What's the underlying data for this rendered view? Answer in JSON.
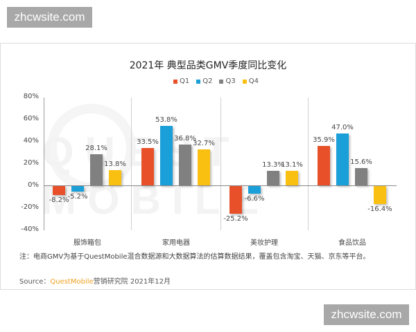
{
  "watermarks": {
    "top": "zhcwsite.com",
    "bottom": "zhcwsite.com"
  },
  "colors": {
    "Q1": "#e8502a",
    "Q2": "#1a9fd8",
    "Q3": "#808080",
    "Q4": "#f9c012",
    "brand": "#f0a020"
  },
  "background_watermark": "QUEST MOBILE",
  "chart_data": {
    "type": "bar",
    "title": "2021年 典型品类GMV季度同比变化",
    "xlabel": "",
    "ylabel": "",
    "ylim": [
      -40,
      80
    ],
    "yticks": [
      "80%",
      "60%",
      "40%",
      "20%",
      "0%",
      "-20%",
      "-40%"
    ],
    "categories": [
      "服饰箱包",
      "家用电器",
      "美妆护理",
      "食品饮品"
    ],
    "legend": [
      "Q1",
      "Q2",
      "Q3",
      "Q4"
    ],
    "legend_position": "top",
    "series": [
      {
        "name": "Q1",
        "values": [
          -8.2,
          33.5,
          -25.2,
          35.9
        ],
        "labels": [
          "-8.2%",
          "33.5%",
          "-25.2%",
          "35.9%"
        ]
      },
      {
        "name": "Q2",
        "values": [
          -5.2,
          53.8,
          -6.6,
          47.0
        ],
        "labels": [
          "-5.2%",
          "53.8%",
          "-6.6%",
          "47.0%"
        ]
      },
      {
        "name": "Q3",
        "values": [
          28.1,
          36.8,
          13.3,
          15.6
        ],
        "labels": [
          "28.1%",
          "36.8%",
          "13.3%",
          "15.6%"
        ]
      },
      {
        "name": "Q4",
        "values": [
          13.8,
          32.7,
          13.1,
          -16.4
        ],
        "labels": [
          "13.8%",
          "32.7%",
          "13.1%",
          "-16.4%"
        ]
      }
    ],
    "unit": "%"
  },
  "note": "注：电商GMV为基于QuestMobile混合数据源和大数据算法的估算数据结果，覆盖包含淘宝、天猫、京东等平台。",
  "source": {
    "prefix": "Source：",
    "brand": "QuestMobile",
    "suffix": "营销研究院 2021年12月"
  }
}
